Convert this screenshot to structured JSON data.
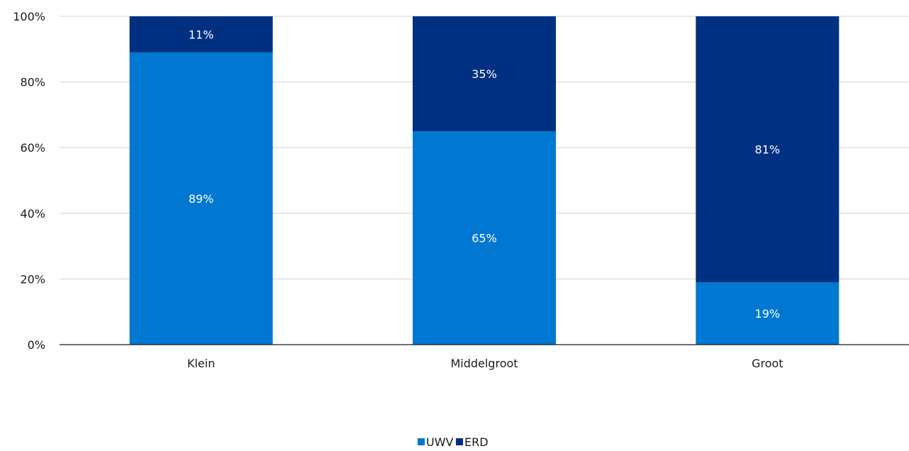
{
  "chart_data": {
    "type": "bar",
    "stacked": true,
    "normalized": true,
    "categories": [
      "Klein",
      "Middelgroot",
      "Groot"
    ],
    "series": [
      {
        "name": "UWV",
        "values": [
          89,
          65,
          19
        ],
        "labels": [
          "89%",
          "65%",
          "19%"
        ],
        "color": "#0078d2"
      },
      {
        "name": "ERD",
        "values": [
          11,
          35,
          81
        ],
        "labels": [
          "11%",
          "35%",
          "81%"
        ],
        "color": "#003082"
      }
    ],
    "ylim": [
      0,
      100
    ],
    "yticks": [
      0,
      20,
      40,
      60,
      80,
      100
    ],
    "ytick_labels": [
      "0%",
      "20%",
      "40%",
      "60%",
      "80%",
      "100%"
    ],
    "grid": true,
    "legend_position": "bottom-center",
    "title": "",
    "xlabel": "",
    "ylabel": ""
  }
}
